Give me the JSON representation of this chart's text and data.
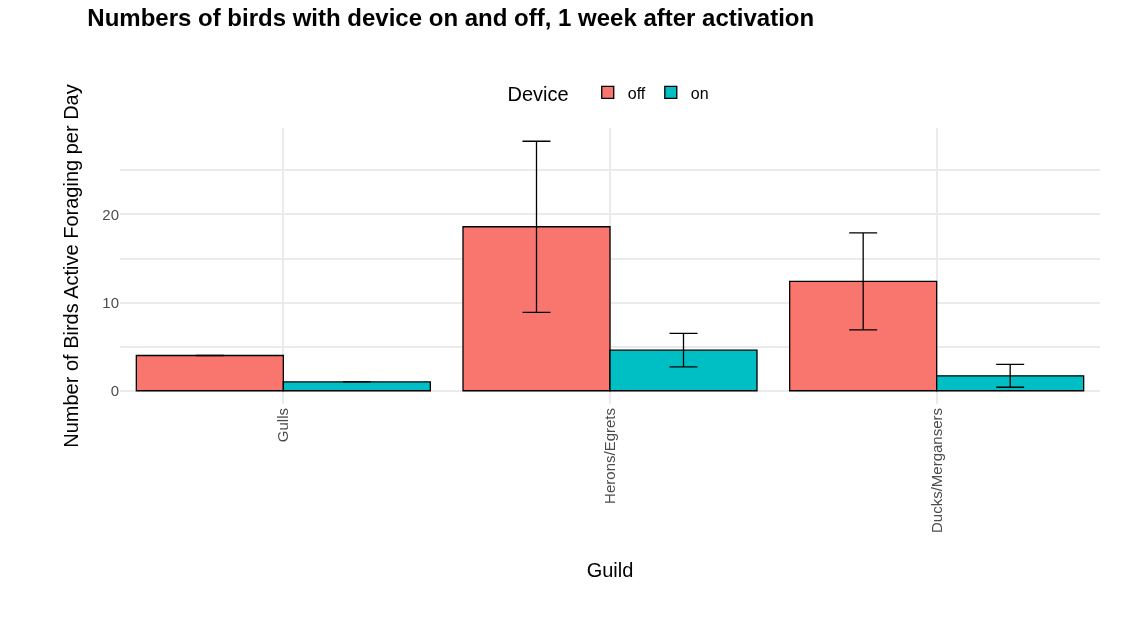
{
  "chart_data": {
    "type": "bar",
    "title": "Numbers of birds with device on and off, 1 week after activation",
    "xlabel": "Guild",
    "ylabel": "Number of Birds Active Foraging per Day",
    "legend_title": "Device",
    "categories": [
      "Gulls",
      "Herons/Egrets",
      "Ducks/Mergansers"
    ],
    "series": [
      {
        "name": "off",
        "color": "#f8766d",
        "values": [
          4,
          18.6,
          12.4
        ],
        "errors": [
          0,
          9.7,
          5.5
        ]
      },
      {
        "name": "on",
        "color": "#00bfc4",
        "values": [
          1,
          4.6,
          1.7
        ],
        "errors": [
          0,
          1.9,
          1.3
        ]
      }
    ],
    "ylim": [
      -1.5,
      29.8
    ],
    "yticks": [
      0,
      {
        "value": 5,
        "label": null
      },
      10,
      {
        "value": 15,
        "label": null
      },
      20,
      {
        "value": 25,
        "label": null
      }
    ],
    "grid": true,
    "legend": "top"
  }
}
